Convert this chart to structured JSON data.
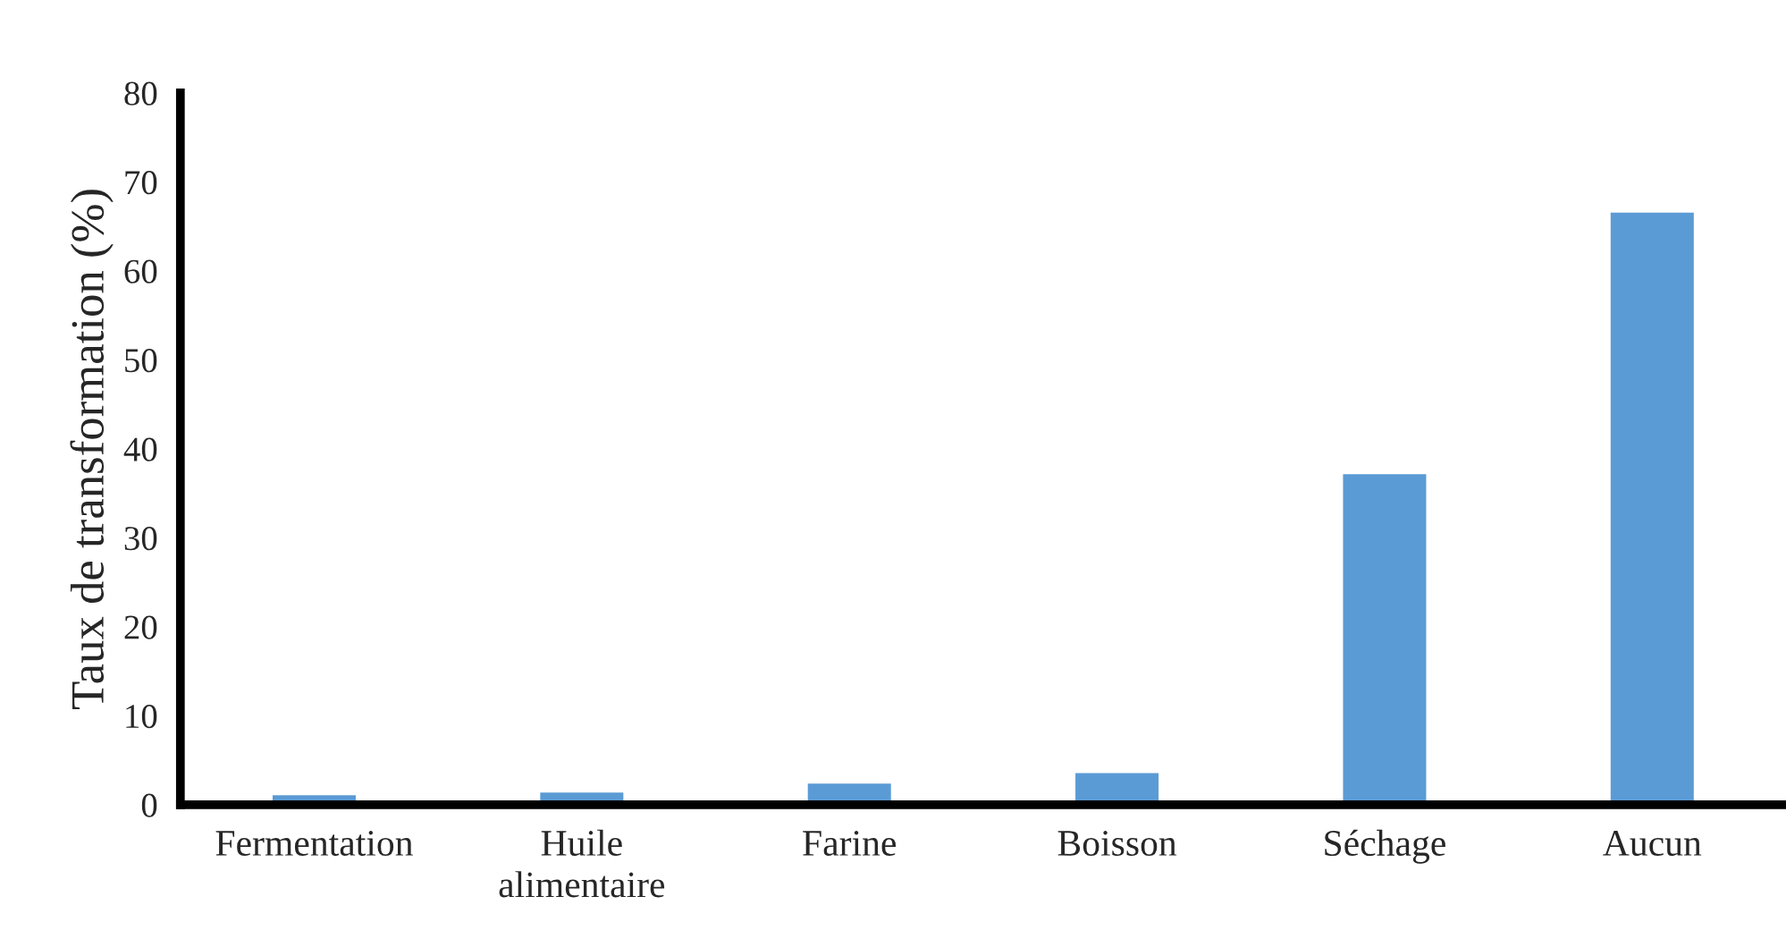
{
  "chart_data": {
    "type": "bar",
    "ylabel": "Taux de transformation (%)",
    "categories": [
      "Fermentation",
      "Huile\nalimentaire",
      "Farine",
      "Boisson",
      "Séchage",
      "Aucun"
    ],
    "values": [
      1.2,
      1.5,
      2.5,
      3.7,
      37.3,
      66.7
    ],
    "color": "#5b9bd5",
    "ylim": [
      0,
      80
    ],
    "yticks": [
      0,
      10,
      20,
      30,
      40,
      50,
      60,
      70,
      80
    ],
    "grid": false
  }
}
